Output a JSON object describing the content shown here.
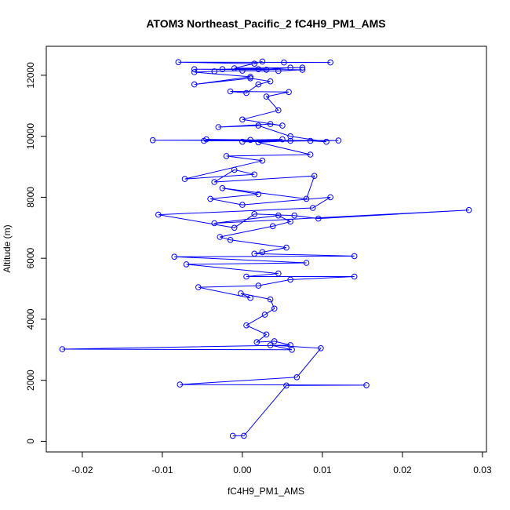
{
  "chart_data": {
    "type": "scatter",
    "title": "ATOM3 Northeast_Pacific_2 fC4H9_PM1_AMS",
    "xlabel": "fC4H9_PM1_AMS",
    "ylabel": "Altitude (m)",
    "xlim": [
      -0.0245,
      0.0305
    ],
    "ylim": [
      -350,
      12950
    ],
    "xticks": [
      -0.02,
      -0.01,
      0.0,
      0.01,
      0.02,
      0.03
    ],
    "xtick_labels": [
      "-0.02",
      "-0.01",
      "0.00",
      "0.01",
      "0.02",
      "0.03"
    ],
    "yticks": [
      0,
      2000,
      4000,
      6000,
      8000,
      10000,
      12000
    ],
    "ytick_labels": [
      "0",
      "2000",
      "4000",
      "6000",
      "8000",
      "10000",
      "12000"
    ],
    "grid": false,
    "color": "#0000ff",
    "series": [
      {
        "x": [
          -0.0012,
          0.0002,
          0.0055,
          0.0155,
          -0.0078,
          0.0068,
          0.0098,
          0.0035,
          0.0062,
          -0.0225,
          0.006,
          0.004,
          0.0018,
          0.003,
          0.0005,
          0.0028,
          0.004,
          0.0035,
          -0.0002,
          0.001,
          -0.0055,
          0.002,
          0.006,
          0.014,
          0.0005,
          0.0045,
          -0.007,
          0.008,
          -0.0085,
          0.014,
          0.0015,
          0.0025,
          0.0055,
          -0.0015,
          -0.0028,
          0.0038,
          0.006,
          0.0045,
          -0.0035,
          0.0283,
          0.0095,
          0.0065,
          0.0015,
          -0.001,
          -0.0105,
          0.0088,
          0.011,
          0.0,
          -0.004,
          0.002,
          -0.0025,
          0.008,
          0.009,
          -0.0035,
          -0.001,
          0.0015,
          -0.0072,
          0.0025,
          -0.002,
          0.0085,
          0.002,
          0.006,
          -0.0045,
          0.001,
          -0.0112,
          0.012,
          0.0,
          0.005,
          -0.0048,
          0.0085,
          0.0105,
          0.006,
          0.002,
          -0.003,
          0.0035,
          0.005,
          0.0,
          0.0045,
          0.003,
          0.0058,
          -0.0015,
          0.0005,
          0.002,
          0.0035,
          0.001,
          -0.006,
          0.001,
          -0.006,
          -0.0035,
          0.0,
          0.0045,
          0.0075,
          0.002,
          -0.006,
          0.003,
          0.006,
          -0.0025,
          0.0075,
          -0.001,
          0.0025,
          0.0015,
          -0.008,
          0.011,
          0.0052
        ],
        "y": [
          180,
          180,
          1830,
          1840,
          1860,
          2100,
          3050,
          3150,
          3000,
          3020,
          3150,
          3280,
          3250,
          3500,
          3800,
          4150,
          4350,
          4650,
          4850,
          4700,
          5050,
          5100,
          5300,
          5400,
          5400,
          5500,
          5800,
          5850,
          6050,
          6070,
          6150,
          6200,
          6350,
          6600,
          6700,
          7050,
          7200,
          7400,
          7150,
          7580,
          7300,
          7400,
          7450,
          7000,
          7430,
          7650,
          8000,
          7750,
          7950,
          8100,
          8300,
          7950,
          8700,
          8500,
          8900,
          8750,
          8600,
          9200,
          9350,
          9400,
          9800,
          9850,
          9900,
          9880,
          9870,
          9860,
          9820,
          9900,
          9850,
          9850,
          9820,
          10000,
          10350,
          10300,
          10400,
          10350,
          10550,
          10850,
          11300,
          11450,
          11470,
          11420,
          11700,
          11800,
          11900,
          11700,
          11950,
          12100,
          12130,
          12150,
          12140,
          12180,
          12200,
          12200,
          12180,
          12250,
          12200,
          12250,
          12230,
          12450,
          12380,
          12430,
          12420,
          12420
        ]
      }
    ]
  }
}
